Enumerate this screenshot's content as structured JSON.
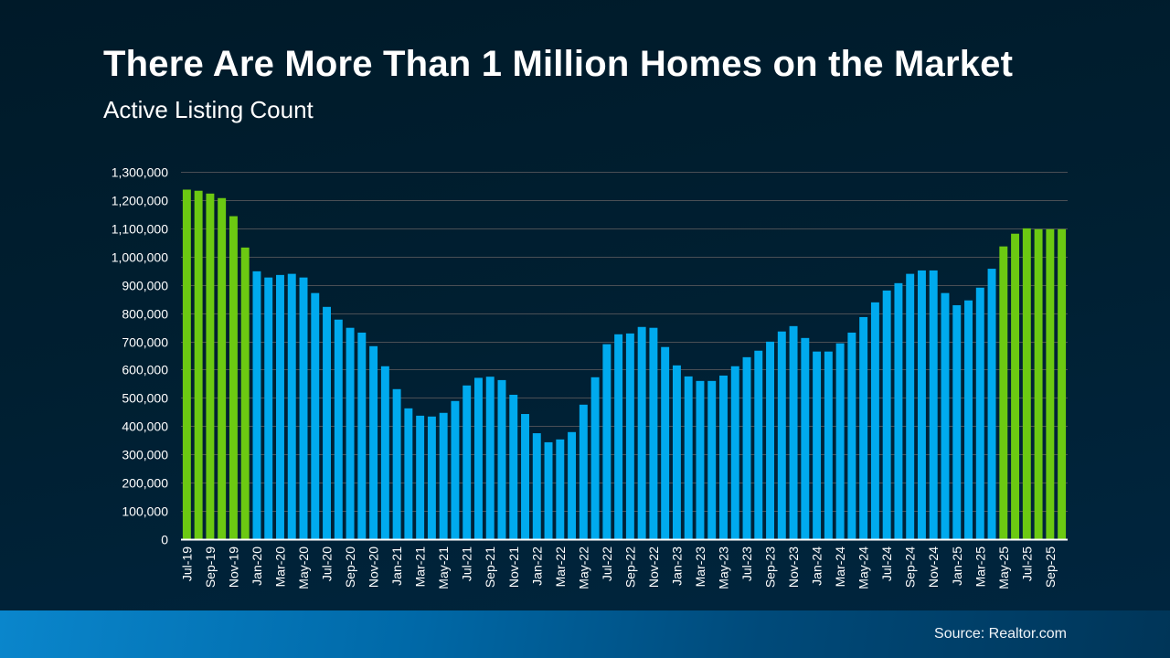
{
  "chart_data": {
    "type": "bar",
    "title": "There Are More Than 1 Million Homes on the Market",
    "subtitle": "Active Listing Count",
    "ylim": [
      0,
      1300000
    ],
    "yticks": [
      0,
      100000,
      200000,
      300000,
      400000,
      500000,
      600000,
      700000,
      800000,
      900000,
      1000000,
      1100000,
      1200000,
      1300000
    ],
    "ytick_labels": [
      "0",
      "100,000",
      "200,000",
      "300,000",
      "400,000",
      "500,000",
      "600,000",
      "700,000",
      "800,000",
      "900,000",
      "1,000,000",
      "1,100,000",
      "1,200,000",
      "1,300,000"
    ],
    "grid": true,
    "categories": [
      "Jul-19",
      "",
      "Sep-19",
      "",
      "Nov-19",
      "",
      "Jan-20",
      "",
      "Mar-20",
      "",
      "May-20",
      "",
      "Jul-20",
      "",
      "Sep-20",
      "",
      "Nov-20",
      "",
      "Jan-21",
      "",
      "Mar-21",
      "",
      "May-21",
      "",
      "Jul-21",
      "",
      "Sep-21",
      "",
      "Nov-21",
      "",
      "Jan-22",
      "",
      "Mar-22",
      "",
      "May-22",
      "",
      "Jul-22",
      "",
      "Sep-22",
      "",
      "Nov-22",
      "",
      "Jan-23",
      "",
      "Mar-23",
      "",
      "May-23",
      "",
      "Jul-23",
      "",
      "Sep-23",
      "",
      "Nov-23",
      "",
      "Jan-24",
      "",
      "Mar-24",
      "",
      "May-24",
      "",
      "Jul-24",
      "",
      "Sep-24",
      "",
      "Nov-24",
      "",
      "Jan-25",
      "",
      "Mar-25",
      "",
      "May-25",
      "",
      "Jul-25",
      "",
      "Sep-25",
      ""
    ],
    "values": [
      1237000,
      1233000,
      1223000,
      1207000,
      1143000,
      1032000,
      948000,
      926000,
      935000,
      939000,
      926000,
      871000,
      822000,
      777000,
      748000,
      731000,
      683000,
      612000,
      531000,
      463000,
      437000,
      434000,
      447000,
      489000,
      544000,
      571000,
      575000,
      563000,
      511000,
      443000,
      375000,
      343000,
      353000,
      379000,
      476000,
      573000,
      690000,
      725000,
      728000,
      751000,
      748000,
      680000,
      615000,
      576000,
      560000,
      560000,
      579000,
      612000,
      644000,
      667000,
      699000,
      735000,
      754000,
      712000,
      664000,
      664000,
      693000,
      731000,
      786000,
      838000,
      880000,
      906000,
      939000,
      951000,
      951000,
      871000,
      828000,
      845000,
      890000,
      957000,
      1036000,
      1081000,
      1100000,
      1097000,
      1097000,
      1097000
    ],
    "colors": {
      "highlight": "#6cc912",
      "default": "#00aaee"
    },
    "highlighted_bars": [
      true,
      true,
      true,
      true,
      true,
      true,
      false,
      false,
      false,
      false,
      false,
      false,
      false,
      false,
      false,
      false,
      false,
      false,
      false,
      false,
      false,
      false,
      false,
      false,
      false,
      false,
      false,
      false,
      false,
      false,
      false,
      false,
      false,
      false,
      false,
      false,
      false,
      false,
      false,
      false,
      false,
      false,
      false,
      false,
      false,
      false,
      false,
      false,
      false,
      false,
      false,
      false,
      false,
      false,
      false,
      false,
      false,
      false,
      false,
      false,
      false,
      false,
      false,
      false,
      false,
      false,
      false,
      false,
      false,
      false,
      true,
      true,
      true,
      true,
      true,
      true
    ]
  },
  "footer": {
    "source": "Source: Realtor.com"
  }
}
